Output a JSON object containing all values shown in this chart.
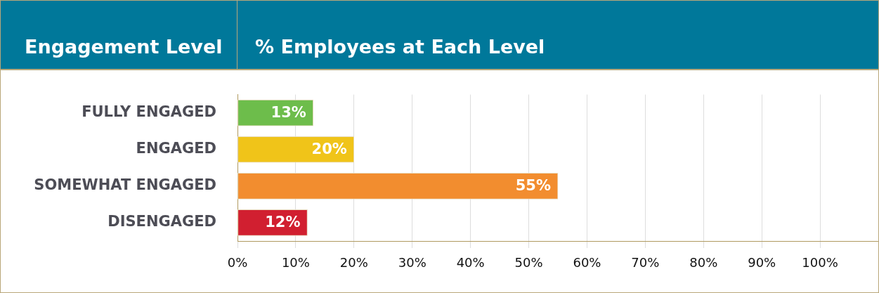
{
  "chart_data": {
    "type": "bar",
    "orientation": "horizontal",
    "ylabel": "Engagement Level",
    "xlabel": "% Employees at Each Level",
    "categories": [
      "FULLY ENGAGED",
      "ENGAGED",
      "SOMEWHAT ENGAGED",
      "DISENGAGED"
    ],
    "values": [
      13,
      20,
      55,
      12
    ],
    "colors": [
      "#6dbd4b",
      "#f0c419",
      "#f28d2f",
      "#d11f30"
    ],
    "value_labels": [
      "13%",
      "20%",
      "55%",
      "12%"
    ],
    "xlim": [
      0,
      110
    ],
    "xticks": [
      {
        "value": 0,
        "label": "0%"
      },
      {
        "value": 10,
        "label": "10%"
      },
      {
        "value": 20,
        "label": "20%"
      },
      {
        "value": 30,
        "label": "30%"
      },
      {
        "value": 40,
        "label": "40%"
      },
      {
        "value": 50,
        "label": "50%"
      },
      {
        "value": 60,
        "label": "60%"
      },
      {
        "value": 70,
        "label": "70%"
      },
      {
        "value": 80,
        "label": "80%"
      },
      {
        "value": 90,
        "label": "90%"
      },
      {
        "value": 100,
        "label": "100%"
      }
    ],
    "grid": "x",
    "legend": false
  }
}
